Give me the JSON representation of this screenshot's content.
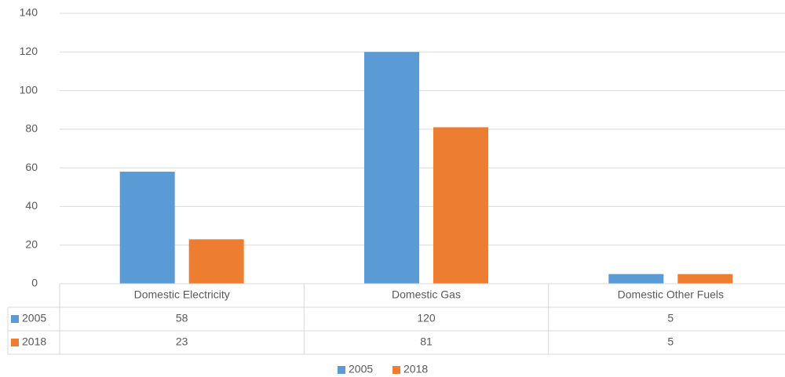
{
  "chart_data": {
    "type": "bar",
    "categories": [
      "Domestic Electricity",
      "Domestic Gas",
      "Domestic Other Fuels"
    ],
    "series": [
      {
        "name": "2005",
        "color": "#5b9bd5",
        "values": [
          58,
          120,
          5
        ]
      },
      {
        "name": "2018",
        "color": "#ed7d31",
        "values": [
          23,
          81,
          5
        ]
      }
    ],
    "ylim": [
      0,
      140
    ],
    "yticks": [
      0,
      20,
      40,
      60,
      80,
      100,
      120,
      140
    ],
    "grid": true,
    "legend": "bottom",
    "data_table": true
  }
}
